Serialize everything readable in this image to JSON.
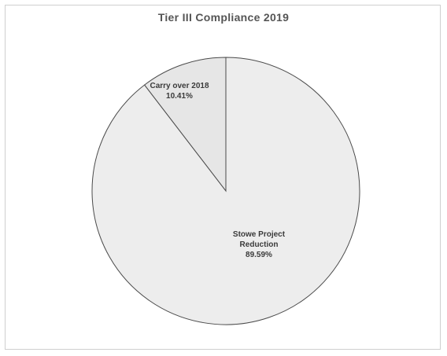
{
  "chart_data": {
    "type": "pie",
    "title": "Tier III Compliance  2019",
    "slices": [
      {
        "label": "Carry over 2018",
        "percent_label": "10.41%",
        "value": 10.41,
        "color": "#e6e6e6"
      },
      {
        "label": "Stowe Project Reduction",
        "percent_label": "89.59%",
        "value": 89.59,
        "color": "#ededed"
      }
    ],
    "legend": "none",
    "data_labels": "inside"
  }
}
